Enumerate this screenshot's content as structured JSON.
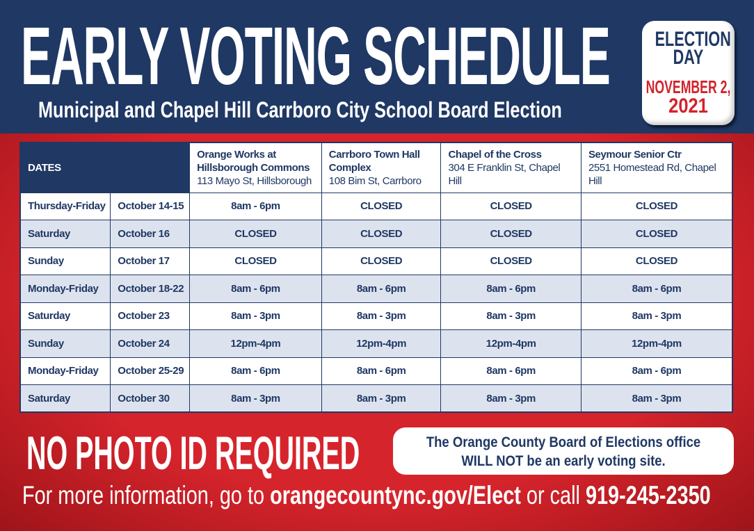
{
  "header": {
    "title": "EARLY VOTING SCHEDULE",
    "subtitle": "Municipal and Chapel Hill Carrboro City School Board Election"
  },
  "election_day": {
    "label1": "ELECTION",
    "label2": "DAY",
    "date1": "NOVEMBER 2,",
    "date2": "2021"
  },
  "table": {
    "dates_header": "DATES",
    "sites": [
      {
        "name": "Orange Works at Hillsborough Commons",
        "address": "113 Mayo St, Hillsborough"
      },
      {
        "name": "Carrboro Town Hall Complex",
        "address": "108 Bim St, Carrboro"
      },
      {
        "name": "Chapel of the Cross",
        "address": "304 E Franklin St, Chapel Hill"
      },
      {
        "name": "Seymour Senior Ctr",
        "address": "2551 Homestead Rd, Chapel Hill"
      }
    ],
    "rows": [
      {
        "day": "Thursday-Friday",
        "date": "October 14-15",
        "hours": [
          "8am - 6pm",
          "CLOSED",
          "CLOSED",
          "CLOSED"
        ]
      },
      {
        "day": "Saturday",
        "date": "October 16",
        "hours": [
          "CLOSED",
          "CLOSED",
          "CLOSED",
          "CLOSED"
        ]
      },
      {
        "day": "Sunday",
        "date": "October 17",
        "hours": [
          "CLOSED",
          "CLOSED",
          "CLOSED",
          "CLOSED"
        ]
      },
      {
        "day": "Monday-Friday",
        "date": "October 18-22",
        "hours": [
          "8am - 6pm",
          "8am - 6pm",
          "8am - 6pm",
          "8am - 6pm"
        ]
      },
      {
        "day": "Saturday",
        "date": "October 23",
        "hours": [
          "8am - 3pm",
          "8am - 3pm",
          "8am - 3pm",
          "8am - 3pm"
        ]
      },
      {
        "day": "Sunday",
        "date": "October 24",
        "hours": [
          "12pm-4pm",
          "12pm-4pm",
          "12pm-4pm",
          "12pm-4pm"
        ]
      },
      {
        "day": "Monday-Friday",
        "date": "October 25-29",
        "hours": [
          "8am - 6pm",
          "8am - 6pm",
          "8am - 6pm",
          "8am - 6pm"
        ]
      },
      {
        "day": "Saturday",
        "date": "October 30",
        "hours": [
          "8am - 3pm",
          "8am - 3pm",
          "8am - 3pm",
          "8am - 3pm"
        ]
      }
    ]
  },
  "no_id": "NO PHOTO ID REQUIRED",
  "notice": {
    "line1": "The Orange County Board of Elections office",
    "line2": "WILL NOT be an early voting site."
  },
  "footer": {
    "prefix": "For more information, go to ",
    "url": "orangecountync.gov/Elect",
    "middle": " or call ",
    "phone": "919-245-2350"
  },
  "colors": {
    "navy": "#1f3864",
    "red": "#d2232b",
    "row_alt": "#dde3ee"
  }
}
